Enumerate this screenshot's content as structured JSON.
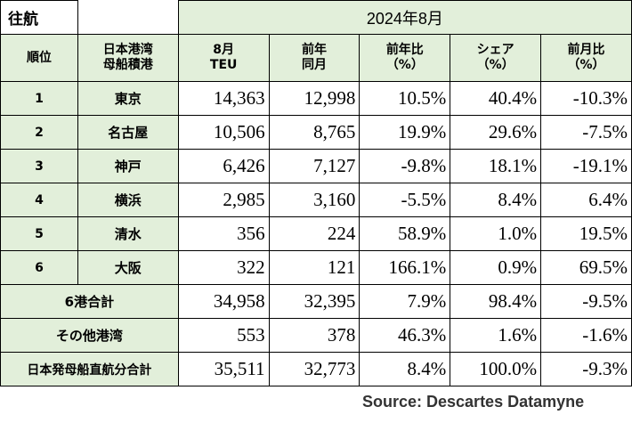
{
  "table": {
    "corner_label": "往航",
    "period": "2024年8月",
    "headers": {
      "rank": "順位",
      "port_line1": "日本港湾",
      "port_line2": "母船積港",
      "teu_line1": "8月",
      "teu_line2": "TEU",
      "prev_line1": "前年",
      "prev_line2": "同月",
      "yoy_line1": "前年比",
      "yoy_line2": "（%）",
      "share_line1": "シェア",
      "share_line2": "（%）",
      "mom_line1": "前月比",
      "mom_line2": "（%）"
    },
    "rows": [
      {
        "rank": "1",
        "port": "東京",
        "teu": "14,363",
        "prev": "12,998",
        "yoy": "10.5%",
        "share": "40.4%",
        "mom": "-10.3%"
      },
      {
        "rank": "2",
        "port": "名古屋",
        "teu": "10,506",
        "prev": "8,765",
        "yoy": "19.9%",
        "share": "29.6%",
        "mom": "-7.5%"
      },
      {
        "rank": "3",
        "port": "神戸",
        "teu": "6,426",
        "prev": "7,127",
        "yoy": "-9.8%",
        "share": "18.1%",
        "mom": "-19.1%"
      },
      {
        "rank": "4",
        "port": "横浜",
        "teu": "2,985",
        "prev": "3,160",
        "yoy": "-5.5%",
        "share": "8.4%",
        "mom": "6.4%"
      },
      {
        "rank": "5",
        "port": "清水",
        "teu": "356",
        "prev": "224",
        "yoy": "58.9%",
        "share": "1.0%",
        "mom": "19.5%"
      },
      {
        "rank": "6",
        "port": "大阪",
        "teu": "322",
        "prev": "121",
        "yoy": "166.1%",
        "share": "0.9%",
        "mom": "69.5%"
      }
    ],
    "subtotals": [
      {
        "label": "6港合計",
        "teu": "34,958",
        "prev": "32,395",
        "yoy": "7.9%",
        "share": "98.4%",
        "mom": "-9.5%"
      },
      {
        "label": "その他港湾",
        "teu": "553",
        "prev": "378",
        "yoy": "46.3%",
        "share": "1.6%",
        "mom": "-1.6%"
      },
      {
        "label": "日本発母船直航分合計",
        "teu": "35,511",
        "prev": "32,773",
        "yoy": "8.4%",
        "share": "100.0%",
        "mom": "-9.3%"
      }
    ]
  },
  "source": "Source:  Descartes Datamyne"
}
